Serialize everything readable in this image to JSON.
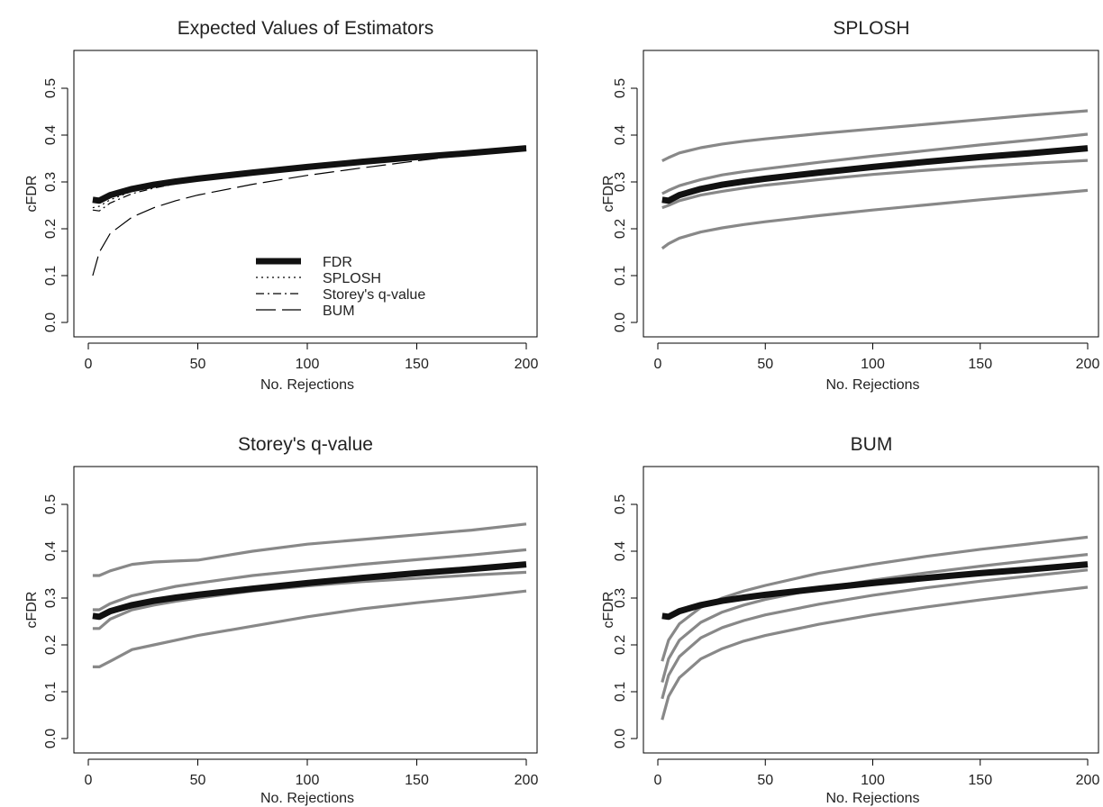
{
  "chart_data": [
    {
      "type": "line",
      "title": "Expected Values of Estimators",
      "xlabel": "No. Rejections",
      "ylabel": "cFDR",
      "xlim": [
        0,
        200
      ],
      "ylim": [
        0,
        0.55
      ],
      "xticks": [
        0,
        50,
        100,
        150,
        200
      ],
      "yticks": [
        "0.0",
        "0.1",
        "0.2",
        "0.3",
        "0.4",
        "0.5"
      ],
      "grid": false,
      "legend": {
        "placement": "bottom-center"
      },
      "x": [
        2,
        5,
        10,
        20,
        30,
        40,
        50,
        75,
        100,
        125,
        150,
        175,
        200
      ],
      "series": [
        {
          "name": "FDR",
          "style": "thick",
          "values": [
            0.262,
            0.26,
            0.272,
            0.285,
            0.294,
            0.301,
            0.307,
            0.32,
            0.332,
            0.343,
            0.353,
            0.362,
            0.372
          ]
        },
        {
          "name": "SPLOSH",
          "style": "dotted",
          "values": [
            0.245,
            0.248,
            0.262,
            0.28,
            0.291,
            0.299,
            0.305,
            0.318,
            0.33,
            0.342,
            0.353,
            0.364,
            0.374
          ]
        },
        {
          "name": "Storey's q-value",
          "style": "dashdot",
          "values": [
            0.24,
            0.238,
            0.255,
            0.275,
            0.287,
            0.296,
            0.303,
            0.317,
            0.329,
            0.341,
            0.352,
            0.364,
            0.376
          ]
        },
        {
          "name": "BUM",
          "style": "longdash",
          "values": [
            0.1,
            0.15,
            0.19,
            0.225,
            0.245,
            0.26,
            0.272,
            0.295,
            0.314,
            0.33,
            0.345,
            0.359,
            0.372
          ]
        }
      ]
    },
    {
      "type": "line",
      "title": "SPLOSH",
      "xlabel": "No. Rejections",
      "ylabel": "cFDR",
      "xlim": [
        0,
        200
      ],
      "ylim": [
        0,
        0.55
      ],
      "xticks": [
        0,
        50,
        100,
        150,
        200
      ],
      "yticks": [
        "0.0",
        "0.1",
        "0.2",
        "0.3",
        "0.4",
        "0.5"
      ],
      "grid": false,
      "x": [
        2,
        5,
        10,
        20,
        30,
        40,
        50,
        75,
        100,
        125,
        150,
        175,
        200
      ],
      "series": [
        {
          "style": "thick",
          "values": [
            0.262,
            0.26,
            0.272,
            0.285,
            0.294,
            0.301,
            0.307,
            0.32,
            0.332,
            0.343,
            0.353,
            0.362,
            0.372
          ]
        },
        {
          "style": "gray",
          "values": [
            0.345,
            0.352,
            0.362,
            0.373,
            0.381,
            0.387,
            0.392,
            0.403,
            0.413,
            0.423,
            0.433,
            0.443,
            0.452
          ]
        },
        {
          "style": "gray",
          "values": [
            0.275,
            0.282,
            0.292,
            0.305,
            0.315,
            0.322,
            0.328,
            0.342,
            0.355,
            0.367,
            0.379,
            0.39,
            0.402
          ]
        },
        {
          "style": "gray",
          "values": [
            0.245,
            0.25,
            0.26,
            0.272,
            0.28,
            0.287,
            0.293,
            0.305,
            0.316,
            0.325,
            0.333,
            0.34,
            0.346
          ]
        },
        {
          "style": "gray",
          "values": [
            0.158,
            0.168,
            0.18,
            0.193,
            0.202,
            0.209,
            0.215,
            0.228,
            0.24,
            0.251,
            0.262,
            0.272,
            0.282
          ]
        }
      ]
    },
    {
      "type": "line",
      "title": "Storey's q-value",
      "xlabel": "No. Rejections",
      "ylabel": "cFDR",
      "xlim": [
        0,
        200
      ],
      "ylim": [
        0,
        0.55
      ],
      "xticks": [
        0,
        50,
        100,
        150,
        200
      ],
      "yticks": [
        "0.0",
        "0.1",
        "0.2",
        "0.3",
        "0.4",
        "0.5"
      ],
      "grid": false,
      "x": [
        2,
        5,
        10,
        20,
        30,
        40,
        50,
        75,
        100,
        125,
        150,
        175,
        200
      ],
      "series": [
        {
          "style": "thick",
          "values": [
            0.262,
            0.26,
            0.272,
            0.285,
            0.294,
            0.301,
            0.307,
            0.32,
            0.332,
            0.343,
            0.353,
            0.362,
            0.372
          ]
        },
        {
          "style": "gray",
          "values": [
            0.348,
            0.348,
            0.358,
            0.372,
            0.377,
            0.379,
            0.381,
            0.4,
            0.415,
            0.425,
            0.435,
            0.445,
            0.458
          ]
        },
        {
          "style": "gray",
          "values": [
            0.275,
            0.275,
            0.288,
            0.305,
            0.315,
            0.325,
            0.332,
            0.348,
            0.36,
            0.372,
            0.382,
            0.392,
            0.403
          ]
        },
        {
          "style": "gray",
          "values": [
            0.235,
            0.235,
            0.255,
            0.275,
            0.285,
            0.293,
            0.3,
            0.315,
            0.326,
            0.335,
            0.342,
            0.349,
            0.355
          ]
        },
        {
          "style": "gray",
          "values": [
            0.153,
            0.153,
            0.165,
            0.19,
            0.2,
            0.21,
            0.22,
            0.24,
            0.26,
            0.277,
            0.29,
            0.302,
            0.315
          ]
        }
      ]
    },
    {
      "type": "line",
      "title": "BUM",
      "xlabel": "No. Rejections",
      "ylabel": "cFDR",
      "xlim": [
        0,
        200
      ],
      "ylim": [
        0,
        0.55
      ],
      "xticks": [
        0,
        50,
        100,
        150,
        200
      ],
      "yticks": [
        "0.0",
        "0.1",
        "0.2",
        "0.3",
        "0.4",
        "0.5"
      ],
      "grid": false,
      "x": [
        2,
        5,
        10,
        20,
        30,
        40,
        50,
        75,
        100,
        125,
        150,
        175,
        200
      ],
      "series": [
        {
          "style": "thick",
          "values": [
            0.262,
            0.26,
            0.272,
            0.285,
            0.294,
            0.301,
            0.307,
            0.32,
            0.332,
            0.343,
            0.353,
            0.362,
            0.372
          ]
        },
        {
          "style": "gray",
          "values": [
            0.165,
            0.21,
            0.245,
            0.28,
            0.3,
            0.315,
            0.327,
            0.353,
            0.372,
            0.389,
            0.404,
            0.417,
            0.43
          ]
        },
        {
          "style": "gray",
          "values": [
            0.12,
            0.17,
            0.21,
            0.248,
            0.27,
            0.285,
            0.297,
            0.32,
            0.338,
            0.354,
            0.368,
            0.381,
            0.393
          ]
        },
        {
          "style": "gray",
          "values": [
            0.085,
            0.135,
            0.175,
            0.215,
            0.237,
            0.252,
            0.264,
            0.287,
            0.306,
            0.322,
            0.336,
            0.348,
            0.36
          ]
        },
        {
          "style": "gray",
          "values": [
            0.04,
            0.09,
            0.13,
            0.17,
            0.192,
            0.208,
            0.22,
            0.244,
            0.264,
            0.281,
            0.296,
            0.31,
            0.323
          ]
        }
      ]
    }
  ]
}
